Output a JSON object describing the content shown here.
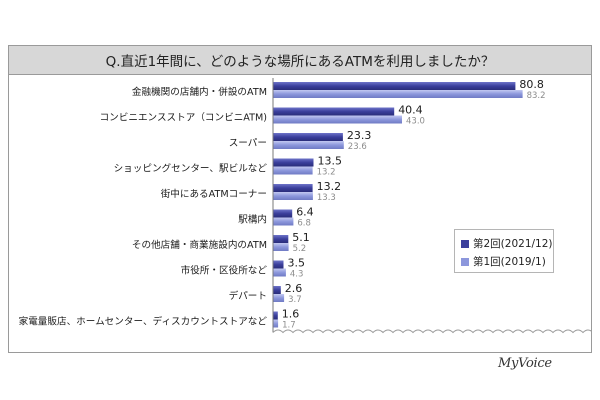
{
  "chart_data": {
    "type": "bar",
    "orientation": "horizontal",
    "title": "Q.直近1年間に、どのような場所にあるATMを利用しましたか？",
    "categories": [
      "金融機関の店舗内・併設のATM",
      "コンビニエンスストア（コンビニATM)",
      "スーパー",
      "ショッピングセンター、駅ビルなど",
      "街中にあるATMコーナー",
      "駅構内",
      "その他店舗・商業施設内のATM",
      "市役所・区役所など",
      "デパート",
      "家電量販店、ホームセンター、ディスカウントストアなど"
    ],
    "series": [
      {
        "name": "第2回(2021/12)",
        "values": [
          80.8,
          40.4,
          23.3,
          13.5,
          13.2,
          6.4,
          5.1,
          3.5,
          2.6,
          1.6
        ],
        "color": "#3b3f9c"
      },
      {
        "name": "第1回(2019/1)",
        "values": [
          83.2,
          43.0,
          23.6,
          13.2,
          13.3,
          6.8,
          5.2,
          4.3,
          3.7,
          1.7
        ],
        "color": "#8c97dc"
      }
    ],
    "xlim": [
      0,
      100
    ],
    "legend_position": "right",
    "grid": false
  },
  "brand": "MyVoice"
}
